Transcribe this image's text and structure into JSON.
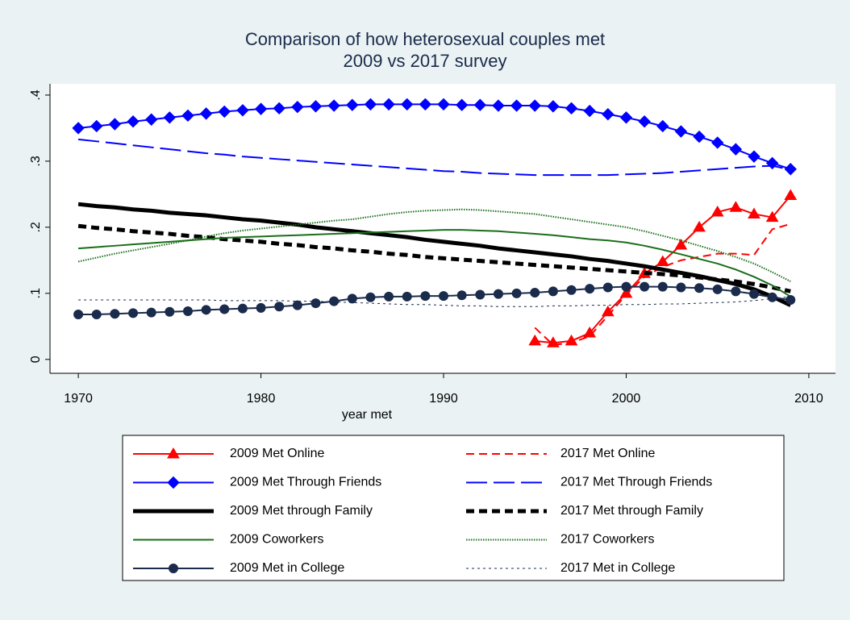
{
  "chart_data": {
    "type": "line",
    "title": [
      "Comparison of how heterosexual couples met",
      "2009 vs 2017 survey"
    ],
    "x_label": "year met",
    "x": [
      1970,
      1971,
      1972,
      1973,
      1974,
      1975,
      1976,
      1977,
      1978,
      1979,
      1980,
      1981,
      1982,
      1983,
      1984,
      1985,
      1986,
      1987,
      1988,
      1989,
      1990,
      1991,
      1992,
      1993,
      1994,
      1995,
      1996,
      1997,
      1998,
      1999,
      2000,
      2001,
      2002,
      2003,
      2004,
      2005,
      2006,
      2007,
      2008,
      2009
    ],
    "xlim": [
      1968.45,
      2011.46
    ],
    "xticks": [
      1970,
      1980,
      1990,
      2000,
      2010
    ],
    "ylim": [
      -0.021,
      0.417
    ],
    "yticks": [
      0,
      {
        "value": 0.1,
        "label": ".1"
      },
      {
        "value": 0.2,
        "label": ".2"
      },
      {
        "value": 0.3,
        "label": ".3"
      },
      {
        "value": 0.4,
        "label": ".4"
      }
    ],
    "grid": false,
    "series": [
      {
        "name": "2009 Met Online",
        "color": "#ff0000",
        "width": 2,
        "dash": "solid",
        "marker": "triangle",
        "values": [
          null,
          null,
          null,
          null,
          null,
          null,
          null,
          null,
          null,
          null,
          null,
          null,
          null,
          null,
          null,
          null,
          null,
          null,
          null,
          null,
          null,
          null,
          null,
          null,
          null,
          0.028,
          0.025,
          0.028,
          0.04,
          0.072,
          0.1,
          0.13,
          0.148,
          0.173,
          0.2,
          0.223,
          0.23,
          0.22,
          0.215,
          0.248
        ]
      },
      {
        "name": "2017 Met Online",
        "color": "#ff0000",
        "width": 2,
        "dash": "dash",
        "marker": "none",
        "values": [
          null,
          null,
          null,
          null,
          null,
          null,
          null,
          null,
          null,
          null,
          null,
          null,
          null,
          null,
          null,
          null,
          null,
          null,
          null,
          null,
          null,
          null,
          null,
          null,
          null,
          0.048,
          0.022,
          0.025,
          0.035,
          0.066,
          0.098,
          0.125,
          0.14,
          0.15,
          0.155,
          0.16,
          0.16,
          0.158,
          0.197,
          0.205
        ]
      },
      {
        "name": "2009 Met Through Friends",
        "color": "#0000ff",
        "width": 2,
        "dash": "solid",
        "marker": "diamond",
        "values": [
          0.35,
          0.353,
          0.356,
          0.36,
          0.363,
          0.366,
          0.369,
          0.372,
          0.375,
          0.377,
          0.379,
          0.38,
          0.382,
          0.383,
          0.384,
          0.385,
          0.386,
          0.386,
          0.386,
          0.386,
          0.386,
          0.385,
          0.385,
          0.384,
          0.384,
          0.384,
          0.383,
          0.38,
          0.376,
          0.371,
          0.366,
          0.36,
          0.353,
          0.345,
          0.337,
          0.328,
          0.318,
          0.307,
          0.297,
          0.288
        ]
      },
      {
        "name": "2017 Met Through Friends",
        "color": "#0000ff",
        "width": 2,
        "dash": "longdash",
        "marker": "none",
        "values": [
          0.333,
          0.33,
          0.327,
          0.324,
          0.321,
          0.318,
          0.315,
          0.312,
          0.31,
          0.307,
          0.305,
          0.303,
          0.301,
          0.299,
          0.297,
          0.295,
          0.293,
          0.291,
          0.289,
          0.287,
          0.285,
          0.284,
          0.282,
          0.281,
          0.28,
          0.279,
          0.279,
          0.279,
          0.279,
          0.279,
          0.28,
          0.281,
          0.282,
          0.284,
          0.286,
          0.288,
          0.29,
          0.292,
          0.293,
          0.287
        ]
      },
      {
        "name": "2009 Met through Family",
        "color": "#000000",
        "width": 5,
        "dash": "solid",
        "marker": "none",
        "values": [
          0.235,
          0.232,
          0.23,
          0.227,
          0.225,
          0.222,
          0.22,
          0.218,
          0.215,
          0.212,
          0.21,
          0.207,
          0.204,
          0.2,
          0.197,
          0.194,
          0.191,
          0.188,
          0.185,
          0.181,
          0.178,
          0.175,
          0.172,
          0.168,
          0.165,
          0.162,
          0.159,
          0.156,
          0.152,
          0.149,
          0.145,
          0.141,
          0.136,
          0.131,
          0.126,
          0.12,
          0.114,
          0.106,
          0.095,
          0.082
        ]
      },
      {
        "name": "2017 Met through Family",
        "color": "#000000",
        "width": 5,
        "dash": "dash",
        "marker": "none",
        "values": [
          0.202,
          0.199,
          0.197,
          0.194,
          0.192,
          0.19,
          0.187,
          0.185,
          0.182,
          0.18,
          0.178,
          0.175,
          0.173,
          0.17,
          0.168,
          0.165,
          0.163,
          0.16,
          0.158,
          0.155,
          0.153,
          0.151,
          0.149,
          0.147,
          0.145,
          0.143,
          0.141,
          0.139,
          0.137,
          0.135,
          0.133,
          0.131,
          0.129,
          0.127,
          0.124,
          0.121,
          0.118,
          0.114,
          0.109,
          0.103
        ]
      },
      {
        "name": "2009 Coworkers",
        "color": "#1a6e1a",
        "width": 2,
        "dash": "solid",
        "marker": "none",
        "values": [
          0.168,
          0.17,
          0.172,
          0.174,
          0.176,
          0.178,
          0.18,
          0.182,
          0.184,
          0.185,
          0.186,
          0.187,
          0.188,
          0.189,
          0.19,
          0.191,
          0.192,
          0.193,
          0.194,
          0.195,
          0.196,
          0.196,
          0.195,
          0.194,
          0.192,
          0.19,
          0.188,
          0.185,
          0.182,
          0.18,
          0.177,
          0.172,
          0.166,
          0.159,
          0.152,
          0.145,
          0.136,
          0.125,
          0.112,
          0.095
        ]
      },
      {
        "name": "2017 Coworkers",
        "color": "#1a6e1a",
        "width": 2,
        "dash": "dot",
        "marker": "none",
        "values": [
          0.148,
          0.154,
          0.16,
          0.165,
          0.17,
          0.175,
          0.18,
          0.186,
          0.191,
          0.195,
          0.198,
          0.201,
          0.204,
          0.207,
          0.21,
          0.212,
          0.216,
          0.22,
          0.223,
          0.225,
          0.226,
          0.227,
          0.226,
          0.224,
          0.222,
          0.22,
          0.216,
          0.212,
          0.208,
          0.204,
          0.2,
          0.194,
          0.187,
          0.18,
          0.172,
          0.164,
          0.155,
          0.145,
          0.132,
          0.118
        ]
      },
      {
        "name": "2009 Met in College",
        "color": "#1a2b4c",
        "width": 2,
        "dash": "solid",
        "marker": "circle",
        "values": [
          0.068,
          0.068,
          0.069,
          0.07,
          0.071,
          0.072,
          0.073,
          0.075,
          0.076,
          0.077,
          0.078,
          0.08,
          0.082,
          0.085,
          0.088,
          0.092,
          0.094,
          0.095,
          0.095,
          0.096,
          0.096,
          0.097,
          0.098,
          0.099,
          0.1,
          0.101,
          0.103,
          0.105,
          0.107,
          0.109,
          0.11,
          0.11,
          0.11,
          0.109,
          0.108,
          0.106,
          0.103,
          0.099,
          0.094,
          0.09
        ]
      },
      {
        "name": "2017 Met in College",
        "color": "#1a2b4c",
        "width": 1,
        "dash": "finedot",
        "marker": "none",
        "values": [
          0.09,
          0.09,
          0.09,
          0.09,
          0.09,
          0.09,
          0.09,
          0.09,
          0.089,
          0.089,
          0.089,
          0.089,
          0.088,
          0.088,
          0.087,
          0.086,
          0.085,
          0.084,
          0.083,
          0.083,
          0.082,
          0.081,
          0.081,
          0.08,
          0.08,
          0.08,
          0.081,
          0.081,
          0.082,
          0.082,
          0.083,
          0.083,
          0.084,
          0.084,
          0.085,
          0.086,
          0.087,
          0.089,
          0.092,
          0.095
        ]
      }
    ]
  }
}
